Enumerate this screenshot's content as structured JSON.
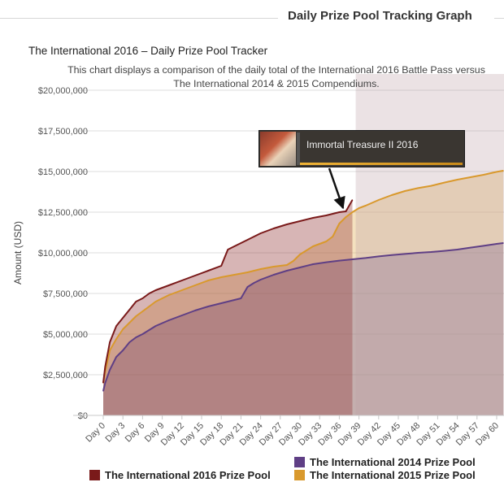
{
  "header": {
    "title": "Daily Prize Pool Tracking Graph"
  },
  "chart_data": {
    "type": "area",
    "title": "The International 2016 – Daily Prize Pool Tracker",
    "subtitle_line1": "This chart displays a comparison of the daily total of the International 2016 Battle Pass versus",
    "subtitle_line2": "The International 2014 & 2015 Compendiums.",
    "ylabel": "Amount (USD)",
    "ylim": [
      0,
      20000000
    ],
    "yticks": [
      0,
      2500000,
      5000000,
      7500000,
      10000000,
      12500000,
      15000000,
      17500000,
      20000000
    ],
    "ytick_labels": [
      "$0",
      "$2,500,000",
      "$5,000,000",
      "$7,500,000",
      "$10,000,000",
      "$12,500,000",
      "$15,000,000",
      "$17,500,000",
      "$20,000,000"
    ],
    "xlim": [
      0,
      61
    ],
    "xticks": [
      0,
      3,
      6,
      9,
      12,
      15,
      18,
      21,
      24,
      27,
      30,
      33,
      36,
      39,
      42,
      45,
      48,
      51,
      54,
      57,
      60
    ],
    "xtick_labels": [
      "Day 0",
      "Day 3",
      "Day 6",
      "Day 9",
      "Day 12",
      "Day 15",
      "Day 18",
      "Day 21",
      "Day 24",
      "Day 27",
      "Day 30",
      "Day 33",
      "Day 36",
      "Day 39",
      "Day 42",
      "Day 45",
      "Day 48",
      "Day 51",
      "Day 54",
      "Day 57",
      "Day 60"
    ],
    "grid": true,
    "legend_position": "bottom",
    "highlight_day": 38.5,
    "series": [
      {
        "name": "The International 2015 Prize Pool",
        "color": "#d9992d",
        "fill": "rgba(227,175,88,0.38)",
        "x": [
          0,
          0.3,
          1,
          2,
          3,
          4,
          5,
          6,
          7,
          8,
          9,
          10,
          12,
          14,
          16,
          18,
          20,
          22,
          24,
          26,
          28,
          29,
          30,
          32,
          34,
          35,
          36,
          37,
          38,
          39,
          40,
          42,
          44,
          46,
          48,
          50,
          52,
          54,
          56,
          58,
          60,
          61
        ],
        "y": [
          2000000,
          2700000,
          4000000,
          4700000,
          5300000,
          5700000,
          6100000,
          6400000,
          6700000,
          7000000,
          7200000,
          7400000,
          7700000,
          8000000,
          8300000,
          8500000,
          8650000,
          8800000,
          9000000,
          9150000,
          9250000,
          9500000,
          9900000,
          10400000,
          10700000,
          11000000,
          11800000,
          12200000,
          12500000,
          12750000,
          12900000,
          13250000,
          13550000,
          13800000,
          13980000,
          14120000,
          14320000,
          14500000,
          14650000,
          14800000,
          14980000,
          15050000
        ]
      },
      {
        "name": "The International 2014 Prize Pool",
        "color": "#5f3f85",
        "fill": "rgba(126,100,150,0.40)",
        "x": [
          0,
          0.3,
          1,
          2,
          3,
          4,
          5,
          6,
          8,
          10,
          12,
          14,
          16,
          18,
          20,
          21,
          22,
          23,
          24,
          26,
          28,
          30,
          32,
          34,
          36,
          38,
          40,
          42,
          44,
          46,
          48,
          50,
          52,
          54,
          56,
          58,
          60,
          61
        ],
        "y": [
          1500000,
          2000000,
          2800000,
          3600000,
          4000000,
          4500000,
          4800000,
          5000000,
          5500000,
          5850000,
          6150000,
          6450000,
          6700000,
          6900000,
          7100000,
          7200000,
          7900000,
          8150000,
          8350000,
          8650000,
          8900000,
          9100000,
          9300000,
          9420000,
          9520000,
          9600000,
          9680000,
          9780000,
          9860000,
          9930000,
          10000000,
          10050000,
          10120000,
          10200000,
          10320000,
          10430000,
          10550000,
          10600000
        ]
      },
      {
        "name": "The International 2016 Prize Pool",
        "color": "#7a1a1a",
        "fill": "rgba(150,60,60,0.38)",
        "x": [
          0,
          0.3,
          1,
          2,
          3,
          4,
          5,
          6,
          7,
          8,
          10,
          12,
          14,
          16,
          18,
          19,
          20,
          22,
          24,
          26,
          28,
          30,
          32,
          34,
          36,
          37,
          38
        ],
        "y": [
          2000000,
          3000000,
          4500000,
          5500000,
          6000000,
          6500000,
          7000000,
          7200000,
          7500000,
          7700000,
          8000000,
          8300000,
          8600000,
          8900000,
          9200000,
          10200000,
          10400000,
          10800000,
          11200000,
          11500000,
          11750000,
          11950000,
          12150000,
          12300000,
          12500000,
          12550000,
          13250000
        ]
      }
    ]
  },
  "legend": [
    {
      "label": "The International 2016 Prize Pool",
      "color": "#7a1a1a"
    },
    {
      "label": "The International 2014 Prize Pool",
      "color": "#5f3f85"
    },
    {
      "label": "The International 2015 Prize Pool",
      "color": "#d9992d"
    }
  ],
  "tooltip": {
    "text": "Immortal Treasure II 2016"
  }
}
